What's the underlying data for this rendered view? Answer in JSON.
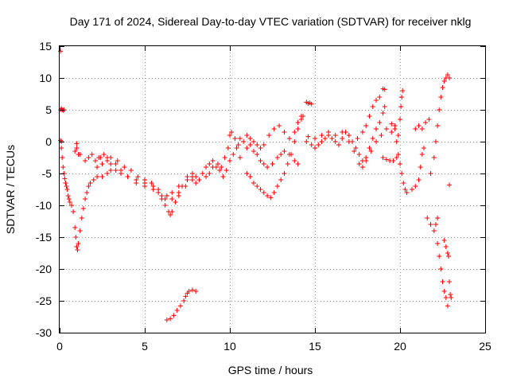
{
  "chart_data": {
    "type": "scatter",
    "title": "Day 171 of 2024, Sidereal Day-to-day VTEC variation (SDTVAR) for receiver nklg",
    "xlabel": "GPS time / hours",
    "ylabel": "SDTVAR / TECUs",
    "xlim": [
      0,
      25
    ],
    "ylim": [
      -30,
      15
    ],
    "xticks": [
      0,
      5,
      10,
      15,
      20,
      25
    ],
    "yticks": [
      -30,
      -25,
      -20,
      -15,
      -10,
      -5,
      0,
      5,
      10,
      15
    ],
    "grid": true,
    "marker": "+",
    "color": "#ff0000",
    "series": [
      {
        "name": "SDTVAR",
        "points": [
          [
            0.05,
            14.2
          ],
          [
            0.05,
            5.0
          ],
          [
            0.1,
            5.2
          ],
          [
            0.15,
            5.0
          ],
          [
            0.2,
            4.9
          ],
          [
            0.25,
            5.0
          ],
          [
            0.05,
            0.2
          ],
          [
            0.1,
            0.0
          ],
          [
            0.1,
            -1.0
          ],
          [
            0.15,
            -2.5
          ],
          [
            0.2,
            -4.0
          ],
          [
            0.25,
            -5.0
          ],
          [
            0.3,
            -5.8
          ],
          [
            0.35,
            -6.5
          ],
          [
            0.4,
            -7.0
          ],
          [
            0.45,
            -7.5
          ],
          [
            0.5,
            -8.5
          ],
          [
            0.55,
            -9.0
          ],
          [
            0.6,
            -9.5
          ],
          [
            0.7,
            -10.0
          ],
          [
            0.8,
            -11.0
          ],
          [
            0.9,
            -13.5
          ],
          [
            0.95,
            -15.0
          ],
          [
            1.0,
            -16.5
          ],
          [
            1.05,
            -17.0
          ],
          [
            1.1,
            -16.0
          ],
          [
            1.2,
            -14.0
          ],
          [
            1.3,
            -12.0
          ],
          [
            1.4,
            -10.5
          ],
          [
            1.5,
            -9.0
          ],
          [
            1.6,
            -8.0
          ],
          [
            1.7,
            -7.0
          ],
          [
            1.8,
            -6.5
          ],
          [
            2.0,
            -6.0
          ],
          [
            2.2,
            -5.5
          ],
          [
            2.5,
            -5.5
          ],
          [
            2.8,
            -5.0
          ],
          [
            3.0,
            -4.5
          ],
          [
            3.3,
            -4.5
          ],
          [
            3.6,
            -5.0
          ],
          [
            4.0,
            -5.5
          ],
          [
            4.5,
            -6.0
          ],
          [
            5.0,
            -6.5
          ],
          [
            5.5,
            -7.0
          ],
          [
            5.8,
            -8.0
          ],
          [
            6.0,
            -9.0
          ],
          [
            6.2,
            -10.0
          ],
          [
            6.4,
            -11.0
          ],
          [
            6.5,
            -11.5
          ],
          [
            6.6,
            -11.0
          ],
          [
            6.8,
            -9.5
          ],
          [
            7.0,
            -8.0
          ],
          [
            7.2,
            -7.0
          ],
          [
            7.5,
            -6.0
          ],
          [
            7.8,
            -5.5
          ],
          [
            8.0,
            -6.5
          ],
          [
            0.9,
            -1.5
          ],
          [
            1.0,
            -1.0
          ],
          [
            1.0,
            -0.3
          ],
          [
            1.1,
            -2.0
          ],
          [
            1.2,
            -2.0
          ],
          [
            1.5,
            -3.0
          ],
          [
            1.7,
            -2.5
          ],
          [
            1.9,
            -2.0
          ],
          [
            2.1,
            -3.0
          ],
          [
            2.3,
            -2.5
          ],
          [
            2.5,
            -3.5
          ],
          [
            2.8,
            -3.0
          ],
          [
            3.0,
            -2.5
          ],
          [
            3.3,
            -3.5
          ],
          [
            3.6,
            -4.5
          ],
          [
            4.0,
            -5.5
          ],
          [
            4.5,
            -6.5
          ],
          [
            5.0,
            -7.0
          ],
          [
            5.5,
            -7.5
          ],
          [
            6.0,
            -8.5
          ],
          [
            6.3,
            -8.5
          ],
          [
            6.6,
            -8.0
          ],
          [
            7.0,
            -7.0
          ],
          [
            7.5,
            -5.5
          ],
          [
            7.8,
            -5.0
          ],
          [
            8.0,
            -5.5
          ],
          [
            2.2,
            -4.0
          ],
          [
            2.4,
            -2.5
          ],
          [
            2.6,
            -2.0
          ],
          [
            2.8,
            -2.5
          ],
          [
            3.0,
            -3.5
          ],
          [
            3.4,
            -3.0
          ],
          [
            3.8,
            -4.0
          ],
          [
            4.2,
            -4.5
          ],
          [
            4.6,
            -5.5
          ],
          [
            5.0,
            -6.0
          ],
          [
            5.4,
            -6.5
          ],
          [
            5.8,
            -7.5
          ],
          [
            6.2,
            -9.0
          ],
          [
            6.6,
            -9.0
          ],
          [
            7.0,
            -8.5
          ],
          [
            7.4,
            -7.0
          ],
          [
            7.8,
            -6.0
          ],
          [
            6.3,
            -28.0
          ],
          [
            6.5,
            -27.8
          ],
          [
            6.7,
            -27.3
          ],
          [
            6.9,
            -26.5
          ],
          [
            7.1,
            -25.8
          ],
          [
            7.3,
            -25.0
          ],
          [
            7.4,
            -24.3
          ],
          [
            7.5,
            -23.8
          ],
          [
            7.6,
            -23.5
          ],
          [
            7.8,
            -23.3
          ],
          [
            8.0,
            -23.5
          ],
          [
            8.2,
            -6.0
          ],
          [
            8.4,
            -5.0
          ],
          [
            8.6,
            -4.0
          ],
          [
            8.8,
            -3.5
          ],
          [
            9.0,
            -3.0
          ],
          [
            9.2,
            -4.0
          ],
          [
            9.4,
            -4.5
          ],
          [
            9.6,
            -5.5
          ],
          [
            9.8,
            -4.5
          ],
          [
            10.0,
            -3.0
          ],
          [
            10.2,
            -2.0
          ],
          [
            10.4,
            -1.0
          ],
          [
            10.6,
            -2.5
          ],
          [
            8.6,
            -5.5
          ],
          [
            8.8,
            -5.0
          ],
          [
            9.0,
            -4.0
          ],
          [
            9.3,
            -3.5
          ],
          [
            9.5,
            -4.0
          ],
          [
            9.7,
            -2.5
          ],
          [
            9.9,
            -1.0
          ],
          [
            10.0,
            1.0
          ],
          [
            10.1,
            1.5
          ],
          [
            10.3,
            0.5
          ],
          [
            10.5,
            -0.5
          ],
          [
            10.6,
            0.5
          ],
          [
            10.8,
            0.0
          ],
          [
            11.0,
            -1.0
          ],
          [
            11.2,
            -0.5
          ],
          [
            11.4,
            -1.5
          ],
          [
            11.6,
            -2.0
          ],
          [
            11.8,
            -3.0
          ],
          [
            12.0,
            -3.5
          ],
          [
            12.2,
            -4.0
          ],
          [
            12.5,
            -3.5
          ],
          [
            12.8,
            -2.5
          ],
          [
            13.0,
            -2.0
          ],
          [
            13.2,
            -1.5
          ],
          [
            13.5,
            -2.0
          ],
          [
            13.8,
            -3.0
          ],
          [
            14.0,
            -3.5
          ],
          [
            11.0,
            1.0
          ],
          [
            11.2,
            0.5
          ],
          [
            11.4,
            0.0
          ],
          [
            11.6,
            -0.5
          ],
          [
            11.8,
            -1.0
          ],
          [
            12.0,
            -0.5
          ],
          [
            12.3,
            1.0
          ],
          [
            12.6,
            2.0
          ],
          [
            12.9,
            2.5
          ],
          [
            13.2,
            1.5
          ],
          [
            13.5,
            0.5
          ],
          [
            13.8,
            1.5
          ],
          [
            14.0,
            3.0
          ],
          [
            14.2,
            4.0
          ],
          [
            11.0,
            -5.0
          ],
          [
            11.2,
            -5.5
          ],
          [
            11.4,
            -6.5
          ],
          [
            11.6,
            -7.0
          ],
          [
            11.8,
            -7.5
          ],
          [
            12.0,
            -8.0
          ],
          [
            12.2,
            -8.5
          ],
          [
            12.4,
            -8.8
          ],
          [
            12.6,
            -8.0
          ],
          [
            12.8,
            -7.0
          ],
          [
            13.0,
            -6.0
          ],
          [
            13.2,
            -5.0
          ],
          [
            13.4,
            -3.5
          ],
          [
            13.6,
            -2.0
          ],
          [
            13.8,
            0.0
          ],
          [
            14.0,
            2.0
          ],
          [
            14.2,
            3.5
          ],
          [
            14.3,
            4.0
          ],
          [
            14.5,
            6.2
          ],
          [
            14.6,
            6.0
          ],
          [
            14.7,
            6.1
          ],
          [
            14.8,
            5.9
          ],
          [
            14.5,
            0.0
          ],
          [
            14.8,
            -0.5
          ],
          [
            15.0,
            -1.0
          ],
          [
            15.2,
            -0.5
          ],
          [
            15.4,
            0.0
          ],
          [
            15.6,
            0.5
          ],
          [
            15.8,
            1.0
          ],
          [
            16.0,
            0.5
          ],
          [
            16.2,
            0.0
          ],
          [
            16.4,
            -0.5
          ],
          [
            16.6,
            0.5
          ],
          [
            16.8,
            1.5
          ],
          [
            17.0,
            1.0
          ],
          [
            17.2,
            0.0
          ],
          [
            17.4,
            -1.0
          ],
          [
            17.6,
            -2.0
          ],
          [
            17.8,
            -3.0
          ],
          [
            18.0,
            -2.5
          ],
          [
            18.2,
            -1.0
          ],
          [
            18.4,
            0.5
          ],
          [
            18.6,
            2.0
          ],
          [
            18.8,
            3.0
          ],
          [
            19.0,
            4.5
          ],
          [
            19.1,
            5.5
          ],
          [
            14.6,
            0.8
          ],
          [
            15.0,
            0.5
          ],
          [
            15.4,
            1.0
          ],
          [
            15.8,
            1.5
          ],
          [
            16.2,
            1.0
          ],
          [
            16.6,
            1.5
          ],
          [
            17.0,
            0.0
          ],
          [
            17.3,
            -1.5
          ],
          [
            17.6,
            -3.5
          ],
          [
            17.8,
            -4.0
          ],
          [
            18.0,
            -3.0
          ],
          [
            18.3,
            -1.5
          ],
          [
            18.6,
            0.0
          ],
          [
            18.9,
            1.0
          ],
          [
            19.2,
            2.0
          ],
          [
            19.5,
            2.8
          ],
          [
            19.7,
            2.0
          ],
          [
            19.8,
            0.0
          ],
          [
            19.9,
            -2.0
          ],
          [
            20.0,
            -3.5
          ],
          [
            20.1,
            -5.0
          ],
          [
            20.2,
            -6.5
          ],
          [
            20.3,
            -7.5
          ],
          [
            20.4,
            -8.0
          ],
          [
            17.5,
            0.5
          ],
          [
            17.8,
            1.5
          ],
          [
            18.0,
            2.5
          ],
          [
            18.2,
            4.0
          ],
          [
            18.4,
            5.5
          ],
          [
            18.6,
            6.5
          ],
          [
            18.8,
            7.0
          ],
          [
            19.0,
            8.3
          ],
          [
            19.1,
            8.2
          ],
          [
            19.0,
            -2.5
          ],
          [
            19.2,
            -2.8
          ],
          [
            19.4,
            -3.0
          ],
          [
            19.6,
            -3.0
          ],
          [
            19.8,
            -2.5
          ],
          [
            19.5,
            1.5
          ],
          [
            19.7,
            2.5
          ],
          [
            19.9,
            1.0
          ],
          [
            20.0,
            3.5
          ],
          [
            20.05,
            5.5
          ],
          [
            20.1,
            7.0
          ],
          [
            20.15,
            8.0
          ],
          [
            20.7,
            -7.5
          ],
          [
            20.9,
            -7.0
          ],
          [
            21.1,
            -6.0
          ],
          [
            21.2,
            -4.0
          ],
          [
            21.3,
            -2.0
          ],
          [
            21.4,
            -1.0
          ],
          [
            20.9,
            2.0
          ],
          [
            21.1,
            2.5
          ],
          [
            21.3,
            2.0
          ],
          [
            21.5,
            3.0
          ],
          [
            21.7,
            3.5
          ],
          [
            21.6,
            -12.0
          ],
          [
            21.8,
            -13.0
          ],
          [
            22.0,
            -14.0
          ],
          [
            22.1,
            -13.0
          ],
          [
            22.2,
            -12.0
          ],
          [
            21.8,
            -5.0
          ],
          [
            22.0,
            -2.5
          ],
          [
            22.1,
            0.0
          ],
          [
            22.2,
            2.5
          ],
          [
            22.3,
            5.0
          ],
          [
            22.4,
            7.0
          ],
          [
            22.5,
            8.5
          ],
          [
            22.6,
            9.5
          ],
          [
            22.7,
            10.0
          ],
          [
            22.8,
            10.5
          ],
          [
            22.9,
            10.0
          ],
          [
            22.2,
            -16.0
          ],
          [
            22.3,
            -18.0
          ],
          [
            22.4,
            -20.0
          ],
          [
            22.5,
            -22.0
          ],
          [
            22.6,
            -23.5
          ],
          [
            22.7,
            -24.5
          ],
          [
            22.8,
            -25.8
          ],
          [
            22.6,
            -15.5
          ],
          [
            22.7,
            -16.5
          ],
          [
            22.8,
            -17.5
          ],
          [
            22.85,
            -18.0
          ],
          [
            22.9,
            -22.0
          ],
          [
            22.95,
            -24.0
          ],
          [
            23.0,
            -24.5
          ],
          [
            22.9,
            -6.8
          ]
        ]
      }
    ]
  }
}
